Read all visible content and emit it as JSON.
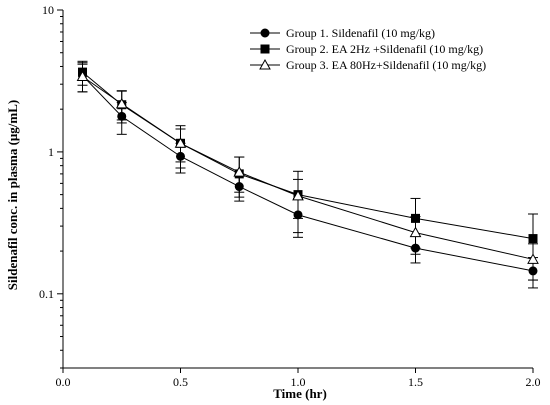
{
  "chart_data": {
    "type": "line",
    "xlabel": "Time (hr)",
    "ylabel": "Sildenafil  conc. in plasma (μg/mL)",
    "xlim": [
      0.0,
      2.0
    ],
    "ylim": [
      0.03,
      10
    ],
    "yscale": "log",
    "grid": false,
    "legend_position": "top-right",
    "x_ticks": [
      "0.0",
      "0.5",
      "1.0",
      "1.5",
      "2.0"
    ],
    "y_ticks": [
      {
        "value": 0.1,
        "label": "0.1"
      },
      {
        "value": 1,
        "label": "1"
      },
      {
        "value": 10,
        "label": "10"
      }
    ],
    "x": [
      0.083,
      0.25,
      0.5,
      0.75,
      1.0,
      1.5,
      2.0
    ],
    "series": [
      {
        "name": "Group 1. Sildenafil (10 mg/kg)",
        "marker": "filled-circle",
        "color": "#000000",
        "values": [
          3.45,
          1.78,
          0.93,
          0.57,
          0.36,
          0.21,
          0.145
        ],
        "errors": [
          0.8,
          0.45,
          0.22,
          0.12,
          0.11,
          0.045,
          0.035
        ]
      },
      {
        "name": "Group 2. EA 2Hz +Sildenafil (10 mg/kg)",
        "marker": "filled-square",
        "color": "#000000",
        "values": [
          3.65,
          2.15,
          1.15,
          0.7,
          0.5,
          0.34,
          0.245
        ],
        "errors": [
          0.7,
          0.55,
          0.38,
          0.22,
          0.23,
          0.13,
          0.12
        ]
      },
      {
        "name": "Group 3. EA 80Hz+Sildenafil (10 mg/kg)",
        "marker": "open-triangle",
        "color": "#000000",
        "values": [
          3.4,
          2.18,
          1.15,
          0.72,
          0.49,
          0.27,
          0.175
        ],
        "errors": [
          0.75,
          0.5,
          0.3,
          0.2,
          0.15,
          0.08,
          0.05
        ]
      }
    ]
  }
}
